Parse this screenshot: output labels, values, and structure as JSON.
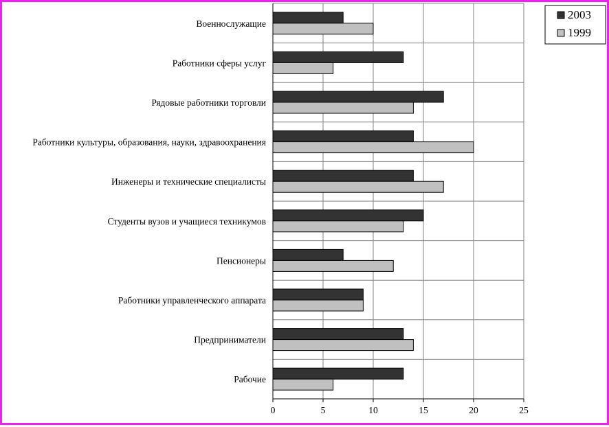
{
  "chart_data": {
    "type": "bar",
    "orientation": "horizontal",
    "categories": [
      "Военнослужащие",
      "Работники сферы услуг",
      "Рядовые работники торговли",
      "Работники культуры, образования, науки, здравоохранения",
      "Инженеры и технические специалисты",
      "Студенты вузов и учащиеся техникумов",
      "Пенсионеры",
      "Работники управленческого аппарата",
      "Предприниматели",
      "Рабочие"
    ],
    "series": [
      {
        "name": "2003",
        "color": "#333333",
        "values": [
          7,
          13,
          17,
          14,
          14,
          15,
          7,
          9,
          13,
          13
        ]
      },
      {
        "name": "1999",
        "color": "#c0c0c0",
        "values": [
          10,
          6,
          14,
          20,
          17,
          13,
          12,
          9,
          14,
          6
        ]
      }
    ],
    "xlim": [
      0,
      25
    ],
    "xticks": [
      "0",
      "5",
      "10",
      "15",
      "20",
      "25"
    ],
    "grid": true,
    "legend_position": "top-right",
    "title": "",
    "xlabel": "",
    "ylabel": ""
  },
  "colors": {
    "frame": "#ee22ee",
    "grid": "#808080"
  }
}
